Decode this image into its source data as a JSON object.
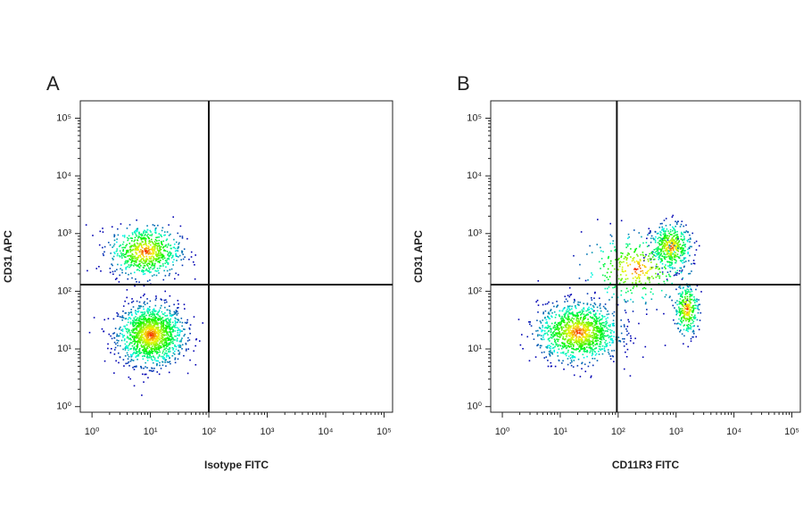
{
  "chart_data": [
    {
      "type": "scatter",
      "title": "A",
      "xlabel": "Isotype FITC",
      "ylabel": "CD31 APC",
      "xscale": "log",
      "yscale": "log",
      "xlim": [
        0.63,
        140000
      ],
      "ylim": [
        0.8,
        200000
      ],
      "xticks": [
        {
          "value": 1,
          "label": "10⁰"
        },
        {
          "value": 10,
          "label": "10¹"
        },
        {
          "value": 100,
          "label": "10²"
        },
        {
          "value": 1000,
          "label": "10³"
        },
        {
          "value": 10000,
          "label": "10⁴"
        },
        {
          "value": 100000,
          "label": "10⁵"
        }
      ],
      "yticks": [
        {
          "value": 1,
          "label": "10⁰"
        },
        {
          "value": 10,
          "label": "10¹"
        },
        {
          "value": 100,
          "label": "10²"
        },
        {
          "value": 1000,
          "label": "10³"
        },
        {
          "value": 10000,
          "label": "10⁴"
        },
        {
          "value": 100000,
          "label": "10⁵"
        }
      ],
      "gate": {
        "x": 100,
        "y": 130
      },
      "populations": [
        {
          "x": 10,
          "y": 18
        },
        {
          "x": 8,
          "y": 500
        }
      ]
    },
    {
      "type": "scatter",
      "title": "B",
      "xlabel": "CD11R3 FITC",
      "ylabel": "CD31 APC",
      "xscale": "log",
      "yscale": "log",
      "xlim": [
        0.63,
        140000
      ],
      "ylim": [
        0.8,
        200000
      ],
      "xticks": [
        {
          "value": 1,
          "label": "10⁰"
        },
        {
          "value": 10,
          "label": "10¹"
        },
        {
          "value": 100,
          "label": "10²"
        },
        {
          "value": 1000,
          "label": "10³"
        },
        {
          "value": 10000,
          "label": "10⁴"
        },
        {
          "value": 100000,
          "label": "10⁵"
        }
      ],
      "yticks": [
        {
          "value": 1,
          "label": "10⁰"
        },
        {
          "value": 10,
          "label": "10¹"
        },
        {
          "value": 100,
          "label": "10²"
        },
        {
          "value": 1000,
          "label": "10³"
        },
        {
          "value": 10000,
          "label": "10⁴"
        },
        {
          "value": 100000,
          "label": "10⁵"
        }
      ],
      "gate": {
        "x": 95,
        "y": 130
      },
      "populations": [
        {
          "x": 20,
          "y": 20
        },
        {
          "x": 800,
          "y": 600
        },
        {
          "x": 1500,
          "y": 50
        },
        {
          "x": 200,
          "y": 250
        }
      ]
    }
  ]
}
